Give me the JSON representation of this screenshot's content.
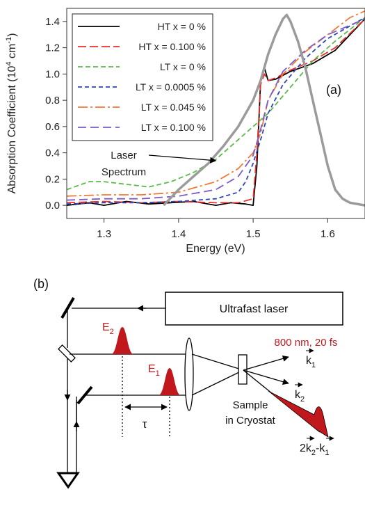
{
  "chart_data": {
    "type": "line",
    "panel_label": "(a)",
    "xlabel": "Energy (eV)",
    "ylabel_main": "Absorption Coefficient (10",
    "ylabel_exp1": "4",
    "ylabel_mid": " cm",
    "ylabel_exp2": "-1",
    "ylabel_end": ")",
    "xlim": [
      1.25,
      1.65
    ],
    "ylim": [
      -0.1,
      1.5
    ],
    "xticks": [
      "1.3",
      "1.4",
      "1.5",
      "1.6"
    ],
    "xtick_values": [
      1.3,
      1.4,
      1.5,
      1.6
    ],
    "yticks": [
      "0.0",
      "0.2",
      "0.4",
      "0.6",
      "0.8",
      "1.0",
      "1.2",
      "1.4"
    ],
    "ytick_values": [
      0.0,
      0.2,
      0.4,
      0.6,
      0.8,
      1.0,
      1.2,
      1.4
    ],
    "annotation_line1": "Laser",
    "annotation_line2": "Spectrum",
    "annotation_target": [
      1.45,
      0.34
    ],
    "series": [
      {
        "name": "HT x = 0 %",
        "color": "#000000",
        "dash": "",
        "x": [
          1.25,
          1.28,
          1.3,
          1.33,
          1.36,
          1.39,
          1.42,
          1.45,
          1.47,
          1.49,
          1.5,
          1.505,
          1.51,
          1.515,
          1.52,
          1.53,
          1.55,
          1.58,
          1.61,
          1.65
        ],
        "y": [
          0.0,
          0.02,
          0.0,
          0.03,
          0.01,
          0.02,
          0.03,
          0.0,
          0.02,
          0.01,
          0.0,
          0.3,
          0.95,
          1.05,
          0.95,
          0.96,
          1.02,
          1.08,
          1.18,
          1.42
        ]
      },
      {
        "name": "HT x = 0.100 %",
        "color": "#e8312a",
        "dash": "12 5",
        "x": [
          1.25,
          1.3,
          1.35,
          1.4,
          1.45,
          1.48,
          1.5,
          1.505,
          1.51,
          1.515,
          1.52,
          1.53,
          1.55,
          1.58,
          1.61,
          1.65
        ],
        "y": [
          0.02,
          0.03,
          0.02,
          0.03,
          0.02,
          0.02,
          0.05,
          0.4,
          0.92,
          1.0,
          0.95,
          0.97,
          1.03,
          1.1,
          1.2,
          1.42
        ]
      },
      {
        "name": "LT x = 0 %",
        "color": "#5ab94a",
        "dash": "7 4",
        "x": [
          1.25,
          1.28,
          1.3,
          1.33,
          1.36,
          1.39,
          1.42,
          1.45,
          1.47,
          1.49,
          1.5,
          1.52,
          1.55,
          1.58,
          1.61,
          1.65
        ],
        "y": [
          0.12,
          0.18,
          0.18,
          0.16,
          0.14,
          0.18,
          0.25,
          0.35,
          0.45,
          0.55,
          0.6,
          0.7,
          0.9,
          1.1,
          1.25,
          1.43
        ]
      },
      {
        "name": "LT x = 0.0005 %",
        "color": "#2a46b8",
        "dash": "6 4",
        "x": [
          1.25,
          1.3,
          1.35,
          1.4,
          1.45,
          1.48,
          1.49,
          1.5,
          1.51,
          1.52,
          1.54,
          1.57,
          1.6,
          1.65
        ],
        "y": [
          0.01,
          0.02,
          0.02,
          0.03,
          0.05,
          0.1,
          0.18,
          0.32,
          0.5,
          0.7,
          0.92,
          1.12,
          1.27,
          1.43
        ]
      },
      {
        "name": "LT x = 0.045 %",
        "color": "#f07a35",
        "dash": "14 4 3 4",
        "x": [
          1.25,
          1.3,
          1.35,
          1.4,
          1.45,
          1.48,
          1.5,
          1.51,
          1.52,
          1.54,
          1.57,
          1.6,
          1.63,
          1.65
        ],
        "y": [
          0.07,
          0.08,
          0.08,
          0.1,
          0.18,
          0.28,
          0.4,
          0.55,
          0.8,
          1.0,
          1.17,
          1.3,
          1.43,
          1.48
        ]
      },
      {
        "name": "LT x = 0.100 %",
        "color": "#7a5cc8",
        "dash": "12 6",
        "x": [
          1.25,
          1.3,
          1.35,
          1.4,
          1.45,
          1.48,
          1.5,
          1.51,
          1.52,
          1.54,
          1.57,
          1.6,
          1.65
        ],
        "y": [
          0.04,
          0.05,
          0.05,
          0.07,
          0.12,
          0.22,
          0.38,
          0.58,
          0.8,
          1.02,
          1.18,
          1.3,
          1.42
        ]
      },
      {
        "name": "Laser Spectrum",
        "color": "#9b9b9b",
        "dash": "",
        "width": 3.5,
        "legend": false,
        "x": [
          1.38,
          1.4,
          1.42,
          1.44,
          1.46,
          1.48,
          1.5,
          1.51,
          1.52,
          1.53,
          1.54,
          1.545,
          1.55,
          1.56,
          1.57,
          1.58,
          1.59,
          1.6,
          1.61,
          1.62,
          1.63,
          1.65
        ],
        "y": [
          0.0,
          0.12,
          0.22,
          0.32,
          0.45,
          0.6,
          0.8,
          0.95,
          1.15,
          1.3,
          1.42,
          1.45,
          1.4,
          1.25,
          1.05,
          0.8,
          0.55,
          0.3,
          0.12,
          0.05,
          0.02,
          0.0
        ]
      }
    ]
  },
  "diagram": {
    "panel_label": "(b)",
    "laser_label": "Ultrafast laser",
    "laser_specs": "800 nm, 20 fs",
    "e2": "E",
    "e2_sub": "2",
    "e1": "E",
    "e1_sub": "1",
    "tau": "τ",
    "sample_line1": "Sample",
    "sample_line2": "in Cryostat",
    "k1": "k",
    "k1_sub": "1",
    "k2": "k",
    "k2_sub": "2",
    "kout_prefix": "2",
    "kout_k2": "k",
    "kout_k2_sub": "2",
    "kout_minus": "-",
    "kout_k1": "k",
    "kout_k1_sub": "1",
    "pulse_color": "#c0181c"
  }
}
